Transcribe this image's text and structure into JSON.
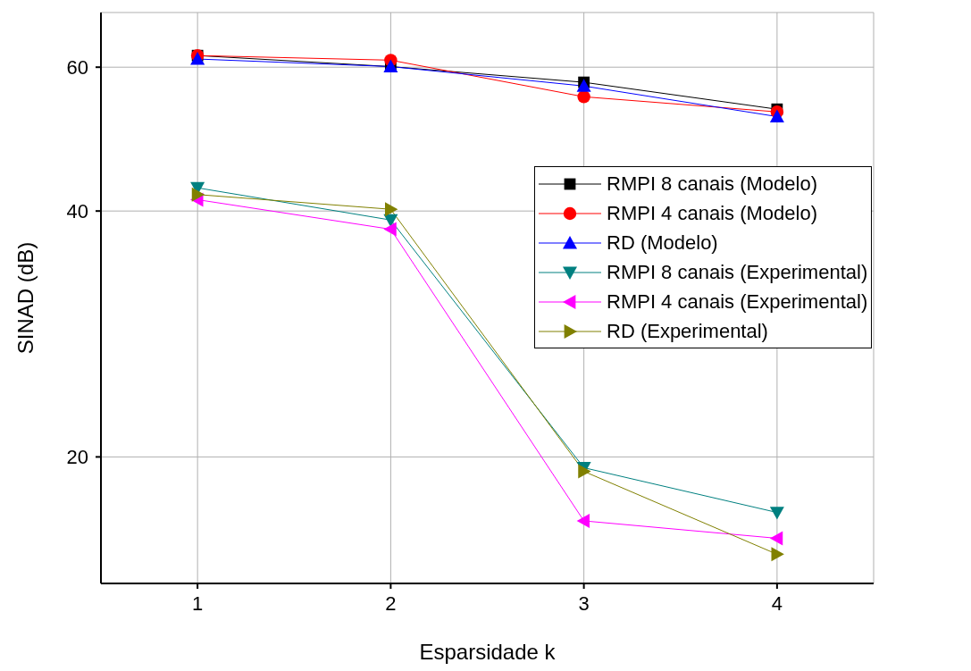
{
  "chart_data": {
    "type": "line",
    "xlabel": "Esparsidade k",
    "ylabel": "SINAD (dB)",
    "x": [
      1,
      2,
      3,
      4
    ],
    "xlim": [
      0.5,
      4.5
    ],
    "xticks": [
      1,
      2,
      3,
      4
    ],
    "ylim": [
      14,
      70
    ],
    "yticks": [
      20,
      40,
      60
    ],
    "log": "y",
    "grid": true,
    "legend": "right",
    "series": [
      {
        "name": "RMPI 8 canais (Modelo)",
        "color": "#000000",
        "marker": "square",
        "values": [
          62.0,
          60.1,
          57.5,
          53.3
        ]
      },
      {
        "name": "RMPI 4 canais (Modelo)",
        "color": "#ff0000",
        "marker": "circle",
        "values": [
          62.0,
          61.2,
          55.2,
          52.9
        ]
      },
      {
        "name": "RD (Modelo)",
        "color": "#0000ff",
        "marker": "triangle",
        "values": [
          61.4,
          60.1,
          56.9,
          52.2
        ]
      },
      {
        "name": "RMPI 8 canais (Experimental)",
        "color": "#008080",
        "marker": "triangle-down",
        "values": [
          42.7,
          39.0,
          19.4,
          17.1
        ]
      },
      {
        "name": "RMPI 4 canais (Experimental)",
        "color": "#ff00ff",
        "marker": "triangle-left",
        "values": [
          41.3,
          38.0,
          16.7,
          15.9
        ]
      },
      {
        "name": "RD (Experimental)",
        "color": "#808000",
        "marker": "triangle-right",
        "values": [
          41.9,
          40.2,
          19.2,
          15.2
        ]
      }
    ]
  }
}
